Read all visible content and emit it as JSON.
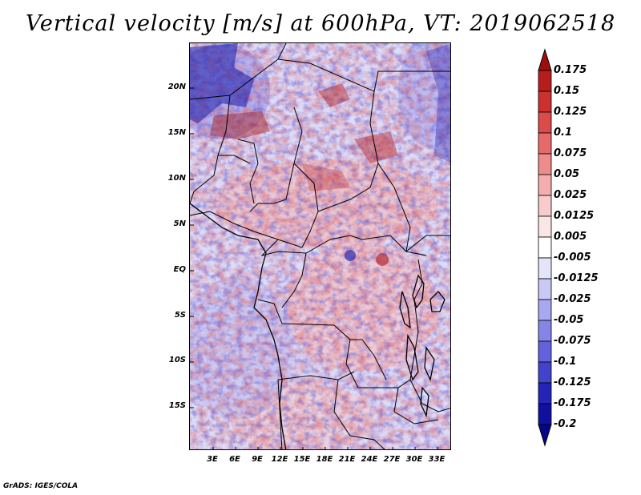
{
  "title": "Vertical velocity [m/s] at 600hPa, VT: 2019062518",
  "footer": "GrADS: IGES/COLA",
  "map": {
    "lat_ticks": [
      "20N",
      "15N",
      "10N",
      "5N",
      "EQ",
      "5S",
      "10S",
      "15S"
    ],
    "lon_ticks": [
      "3E",
      "6E",
      "9E",
      "12E",
      "15E",
      "18E",
      "21E",
      "24E",
      "27E",
      "30E",
      "33E"
    ]
  },
  "colorbar": {
    "labels": [
      "0.175",
      "0.15",
      "0.125",
      "0.1",
      "0.075",
      "0.05",
      "0.025",
      "0.0125",
      "0.005",
      "-0.005",
      "-0.0125",
      "-0.025",
      "-0.05",
      "-0.075",
      "-0.1",
      "-0.125",
      "-0.175",
      "-0.2"
    ],
    "colors": [
      "#a00d0d",
      "#b81d1d",
      "#cc3030",
      "#dc4a4a",
      "#e66a6a",
      "#ee8c8c",
      "#f4aeae",
      "#f8cccc",
      "#fbe6e6",
      "#ffffff",
      "#e4e4fb",
      "#c9c9f6",
      "#a8a8f0",
      "#8585e8",
      "#6262dc",
      "#4242cc",
      "#2424b8",
      "#1010a0",
      "#060688"
    ]
  }
}
